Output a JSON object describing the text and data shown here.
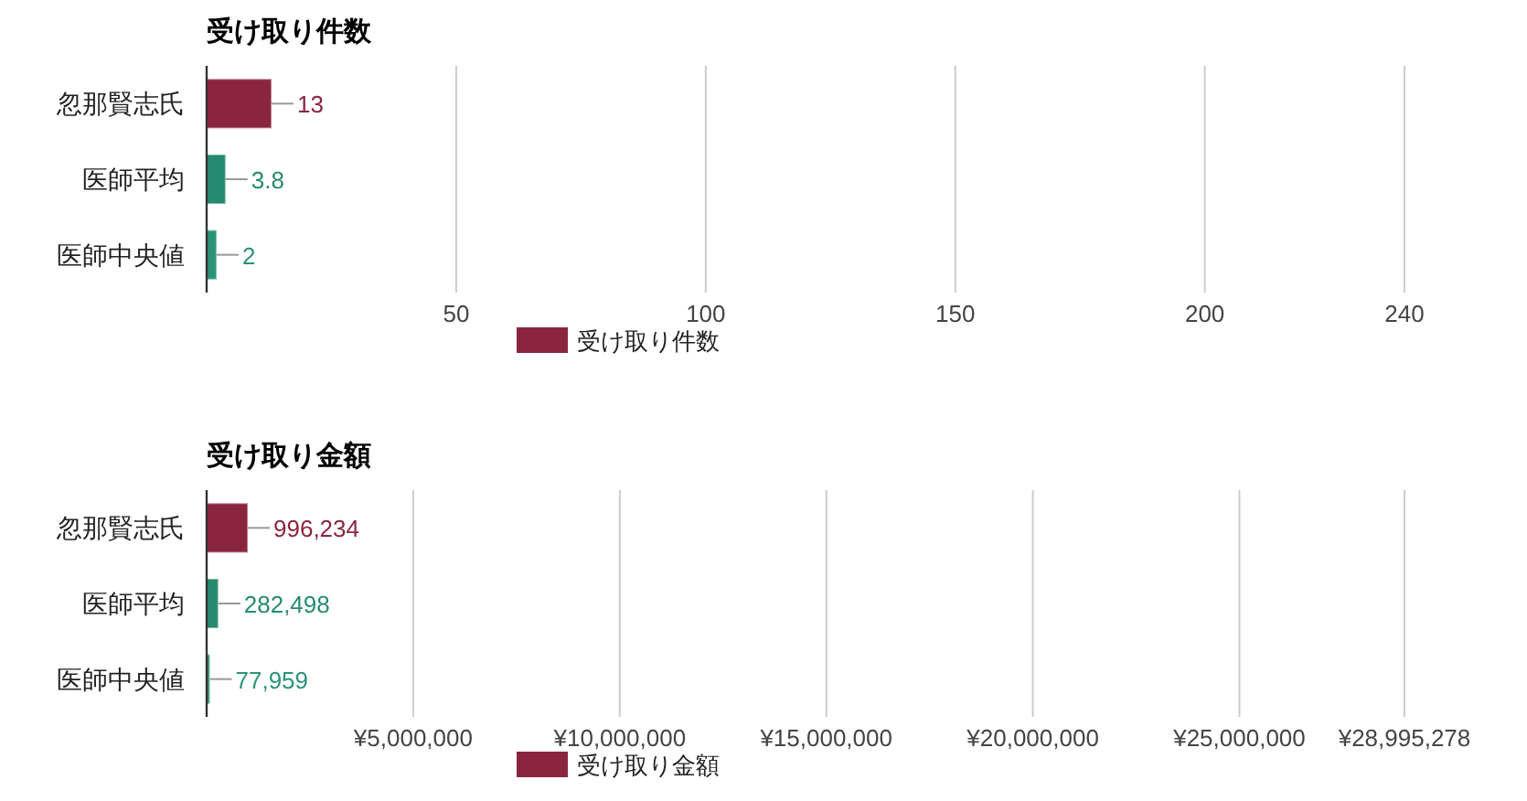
{
  "chart_data": [
    {
      "type": "bar",
      "orientation": "horizontal",
      "title": "受け取り件数",
      "categories": [
        "忽那賢志氏",
        "医師平均",
        "医師中央値"
      ],
      "series": [
        {
          "name": "受け取り件数",
          "color": "#8a2540",
          "colors": [
            "#8a2540",
            "#268a6e",
            "#2a9377"
          ],
          "values": [
            13,
            3.8,
            2
          ]
        }
      ],
      "xlim": [
        0,
        240
      ],
      "xticks": [
        50,
        100,
        150,
        200,
        240
      ],
      "grid": "x",
      "legend": "bottom",
      "data_labels": true
    },
    {
      "type": "bar",
      "orientation": "horizontal",
      "title": "受け取り金額",
      "categories": [
        "忽那賢志氏",
        "医師平均",
        "医師中央値"
      ],
      "series": [
        {
          "name": "受け取り金額",
          "color": "#8a2540",
          "colors": [
            "#8a2540",
            "#268a6e",
            "#2a9377"
          ],
          "values": [
            996234,
            282498,
            77959
          ],
          "value_labels": [
            "996,234",
            "282,498",
            "77,959"
          ]
        }
      ],
      "xlim": [
        0,
        28995278
      ],
      "xticks": [
        {
          "value": 5000000,
          "label": "¥5,000,000"
        },
        {
          "value": 10000000,
          "label": "¥10,000,000"
        },
        {
          "value": 15000000,
          "label": "¥15,000,000"
        },
        {
          "value": 20000000,
          "label": "¥20,000,000"
        },
        {
          "value": 25000000,
          "label": "¥25,000,000"
        },
        {
          "value": 28995278,
          "label": "¥28,995,278"
        }
      ],
      "grid": "x",
      "legend": "bottom"
    }
  ]
}
